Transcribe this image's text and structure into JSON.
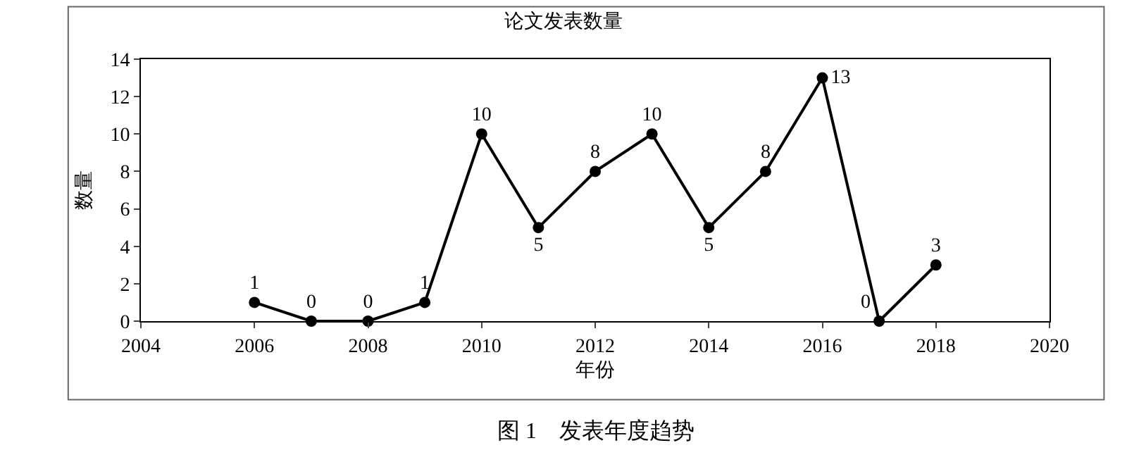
{
  "chart_data": {
    "type": "line",
    "title": "论文发表数量",
    "xlabel": "年份",
    "ylabel": "数量",
    "x": [
      2006,
      2007,
      2008,
      2009,
      2010,
      2011,
      2012,
      2013,
      2014,
      2015,
      2016,
      2017,
      2018
    ],
    "values": [
      1,
      0,
      0,
      1,
      10,
      5,
      8,
      10,
      5,
      8,
      13,
      0,
      3
    ],
    "color": "#000000",
    "marker": "circle",
    "line_style": "solid",
    "data_labels": true,
    "grid": false,
    "xlim": [
      2004,
      2020
    ],
    "xticks": [
      2004,
      2006,
      2008,
      2010,
      2012,
      2014,
      2016,
      2018,
      2020
    ],
    "ylim": [
      0,
      14
    ],
    "yticks": [
      0,
      2,
      4,
      6,
      8,
      10,
      12,
      14
    ],
    "annotations": [
      "图 1　发表年度趋势"
    ]
  }
}
